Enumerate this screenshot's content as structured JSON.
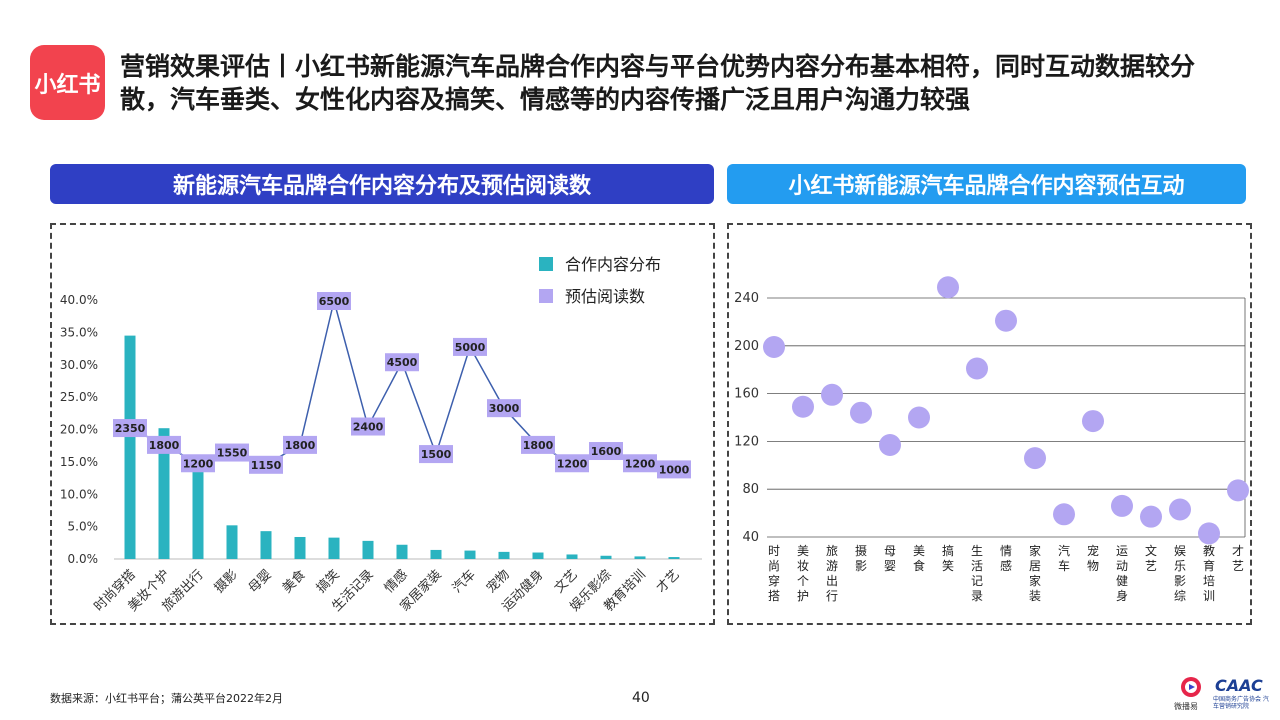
{
  "header": {
    "logo_text": "小红书",
    "title": "营销效果评估丨小红书新能源汽车品牌合作内容与平台优势内容分布基本相符，同时互动数据较分散，汽车垂类、女性化内容及搞笑、情感等的内容传播广泛且用户沟通力较强"
  },
  "left_banner": "新能源汽车品牌合作内容分布及预估阅读数",
  "right_banner": "小红书新能源汽车品牌合作内容预估互动",
  "footer": {
    "source": "数据来源：小红书平台；蒲公英平台2022年2月",
    "page": "40",
    "brand1_label": "微播易",
    "brand2": "CAAC",
    "brand2_sub": "中国商务广告协会 汽车营销研究院"
  },
  "colors": {
    "bar": "#2ab3c0",
    "line": "#3d5fad",
    "label_box": "#b3a6f2",
    "dot": "#b3a6f2"
  },
  "chart_data": [
    {
      "type": "bar",
      "categories": [
        "时尚穿搭",
        "美妆个护",
        "旅游出行",
        "摄影",
        "母婴",
        "美食",
        "搞笑",
        "生活记录",
        "情感",
        "家居家装",
        "汽车",
        "宠物",
        "运动健身",
        "文艺",
        "娱乐影综",
        "教育培训",
        "才艺"
      ],
      "series": [
        {
          "name": "合作内容分布",
          "type": "bar",
          "axis": "left",
          "values": [
            34.5,
            20.2,
            14.3,
            5.2,
            4.3,
            3.4,
            3.3,
            2.8,
            2.2,
            1.4,
            1.3,
            1.1,
            1.0,
            0.7,
            0.5,
            0.4,
            0.3
          ]
        },
        {
          "name": "预估阅读数",
          "type": "line",
          "axis": "hidden",
          "values": [
            2350,
            1800,
            1200,
            1550,
            1150,
            1800,
            6500,
            2400,
            4500,
            1500,
            5000,
            3000,
            1800,
            1200,
            1600,
            1200,
            1000
          ]
        }
      ],
      "y_ticks": [
        "0.0%",
        "5.0%",
        "10.0%",
        "15.0%",
        "20.0%",
        "25.0%",
        "30.0%",
        "35.0%",
        "40.0%"
      ],
      "ylim": [
        0,
        40
      ],
      "legend_position": "top-right",
      "grid": false
    },
    {
      "type": "scatter",
      "categories": [
        "时尚穿搭",
        "美妆个护",
        "旅游出行",
        "摄影",
        "母婴",
        "美食",
        "搞笑",
        "生活记录",
        "情感",
        "家居家装",
        "汽车",
        "宠物",
        "运动健身",
        "文艺",
        "娱乐影综",
        "教育培训",
        "才艺"
      ],
      "values": [
        199,
        149,
        159,
        144,
        117,
        140,
        249,
        181,
        221,
        106,
        59,
        137,
        66,
        57,
        63,
        43,
        79
      ],
      "y_ticks": [
        "40",
        "80",
        "120",
        "160",
        "200",
        "240"
      ],
      "ylim": [
        40,
        250
      ],
      "grid": true
    }
  ]
}
